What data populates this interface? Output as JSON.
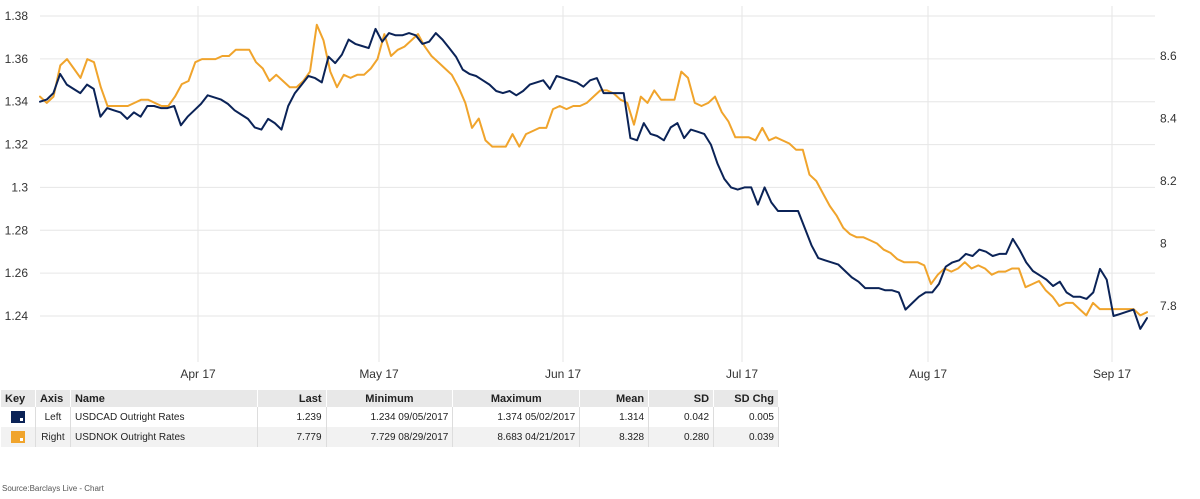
{
  "chart_data": {
    "type": "line",
    "x_labels": [
      "Apr 17",
      "May 17",
      "Jun 17",
      "Jul 17",
      "Aug 17",
      "Sep 17"
    ],
    "left_axis": {
      "ticks": [
        "1.38",
        "1.36",
        "1.34",
        "1.32",
        "1.3",
        "1.28",
        "1.26",
        "1.24"
      ],
      "range": [
        1.23,
        1.385
      ]
    },
    "right_axis": {
      "ticks": [
        "8.6",
        "8.4",
        "8.2",
        "8",
        "7.8"
      ],
      "range": [
        7.7,
        8.8
      ]
    },
    "grid": true,
    "series": [
      {
        "name": "USDCAD Outright Rates",
        "axis": "Left",
        "color": "#0b2357",
        "values": [
          1.34,
          1.341,
          1.344,
          1.353,
          1.348,
          1.346,
          1.344,
          1.348,
          1.346,
          1.333,
          1.337,
          1.336,
          1.335,
          1.332,
          1.335,
          1.333,
          1.338,
          1.338,
          1.337,
          1.337,
          1.338,
          1.329,
          1.333,
          1.336,
          1.339,
          1.343,
          1.342,
          1.341,
          1.339,
          1.336,
          1.334,
          1.332,
          1.328,
          1.327,
          1.332,
          1.33,
          1.327,
          1.338,
          1.344,
          1.348,
          1.352,
          1.351,
          1.349,
          1.361,
          1.358,
          1.362,
          1.369,
          1.367,
          1.366,
          1.365,
          1.374,
          1.368,
          1.372,
          1.371,
          1.371,
          1.372,
          1.371,
          1.367,
          1.368,
          1.372,
          1.369,
          1.365,
          1.361,
          1.355,
          1.353,
          1.352,
          1.35,
          1.348,
          1.345,
          1.344,
          1.345,
          1.343,
          1.345,
          1.348,
          1.349,
          1.35,
          1.346,
          1.352,
          1.351,
          1.35,
          1.349,
          1.347,
          1.35,
          1.351,
          1.344,
          1.344,
          1.344,
          1.344,
          1.323,
          1.322,
          1.33,
          1.325,
          1.324,
          1.322,
          1.328,
          1.33,
          1.323,
          1.327,
          1.326,
          1.325,
          1.32,
          1.311,
          1.304,
          1.3,
          1.299,
          1.3,
          1.3,
          1.292,
          1.3,
          1.293,
          1.289,
          1.289,
          1.289,
          1.289,
          1.281,
          1.273,
          1.267,
          1.266,
          1.265,
          1.264,
          1.261,
          1.258,
          1.256,
          1.253,
          1.253,
          1.253,
          1.252,
          1.252,
          1.251,
          1.243,
          1.246,
          1.249,
          1.251,
          1.251,
          1.255,
          1.263,
          1.265,
          1.266,
          1.269,
          1.268,
          1.271,
          1.27,
          1.268,
          1.269,
          1.269,
          1.276,
          1.271,
          1.265,
          1.261,
          1.259,
          1.257,
          1.254,
          1.256,
          1.251,
          1.249,
          1.249,
          1.248,
          1.251,
          1.262,
          1.257,
          1.24,
          1.241,
          1.242,
          1.243,
          1.234,
          1.239
        ]
      },
      {
        "name": "USDNOK Outright Rates",
        "axis": "Right",
        "color": "#f0a42c",
        "values": [
          8.47,
          8.45,
          8.47,
          8.57,
          8.59,
          8.56,
          8.53,
          8.59,
          8.58,
          8.5,
          8.44,
          8.44,
          8.44,
          8.44,
          8.45,
          8.46,
          8.46,
          8.45,
          8.44,
          8.44,
          8.47,
          8.51,
          8.52,
          8.58,
          8.59,
          8.59,
          8.59,
          8.6,
          8.6,
          8.62,
          8.62,
          8.62,
          8.58,
          8.56,
          8.52,
          8.54,
          8.52,
          8.5,
          8.5,
          8.52,
          8.55,
          8.7,
          8.65,
          8.55,
          8.5,
          8.54,
          8.53,
          8.54,
          8.54,
          8.56,
          8.59,
          8.67,
          8.6,
          8.62,
          8.63,
          8.65,
          8.67,
          8.63,
          8.6,
          8.58,
          8.56,
          8.54,
          8.5,
          8.45,
          8.37,
          8.4,
          8.33,
          8.31,
          8.31,
          8.31,
          8.35,
          8.31,
          8.35,
          8.36,
          8.37,
          8.37,
          8.43,
          8.44,
          8.43,
          8.44,
          8.44,
          8.45,
          8.47,
          8.49,
          8.49,
          8.48,
          8.46,
          8.45,
          8.38,
          8.47,
          8.45,
          8.49,
          8.46,
          8.46,
          8.46,
          8.55,
          8.53,
          8.45,
          8.44,
          8.45,
          8.47,
          8.42,
          8.39,
          8.34,
          8.34,
          8.34,
          8.33,
          8.37,
          8.33,
          8.34,
          8.33,
          8.32,
          8.3,
          8.3,
          8.22,
          8.2,
          8.16,
          8.12,
          8.09,
          8.05,
          8.03,
          8.02,
          8.02,
          8.01,
          8.0,
          7.98,
          7.97,
          7.95,
          7.94,
          7.94,
          7.94,
          7.93,
          7.87,
          7.9,
          7.92,
          7.91,
          7.92,
          7.94,
          7.92,
          7.93,
          7.92,
          7.9,
          7.91,
          7.91,
          7.92,
          7.92,
          7.86,
          7.87,
          7.88,
          7.85,
          7.83,
          7.8,
          7.81,
          7.81,
          7.79,
          7.77,
          7.81,
          7.79,
          7.79,
          7.79,
          7.79,
          7.79,
          7.79,
          7.77,
          7.78
        ]
      }
    ]
  },
  "table": {
    "headers": {
      "key": "Key",
      "axis": "Axis",
      "name": "Name",
      "last": "Last",
      "minimum": "Minimum",
      "maximum": "Maximum",
      "mean": "Mean",
      "sd": "SD",
      "sdchg": "SD Chg"
    },
    "rows": [
      {
        "color": "#0b2357",
        "axis": "Left",
        "name": "USDCAD Outright Rates",
        "last": "1.239",
        "minimum": "1.234 09/05/2017",
        "maximum": "1.374 05/02/2017",
        "mean": "1.314",
        "sd": "0.042",
        "sdchg": "0.005"
      },
      {
        "color": "#f0a42c",
        "axis": "Right",
        "name": "USDNOK Outright Rates",
        "last": "7.779",
        "minimum": "7.729 08/29/2017",
        "maximum": "8.683 04/21/2017",
        "mean": "8.328",
        "sd": "0.280",
        "sdchg": "0.039"
      }
    ]
  },
  "source": "Source:Barclays Live - Chart"
}
